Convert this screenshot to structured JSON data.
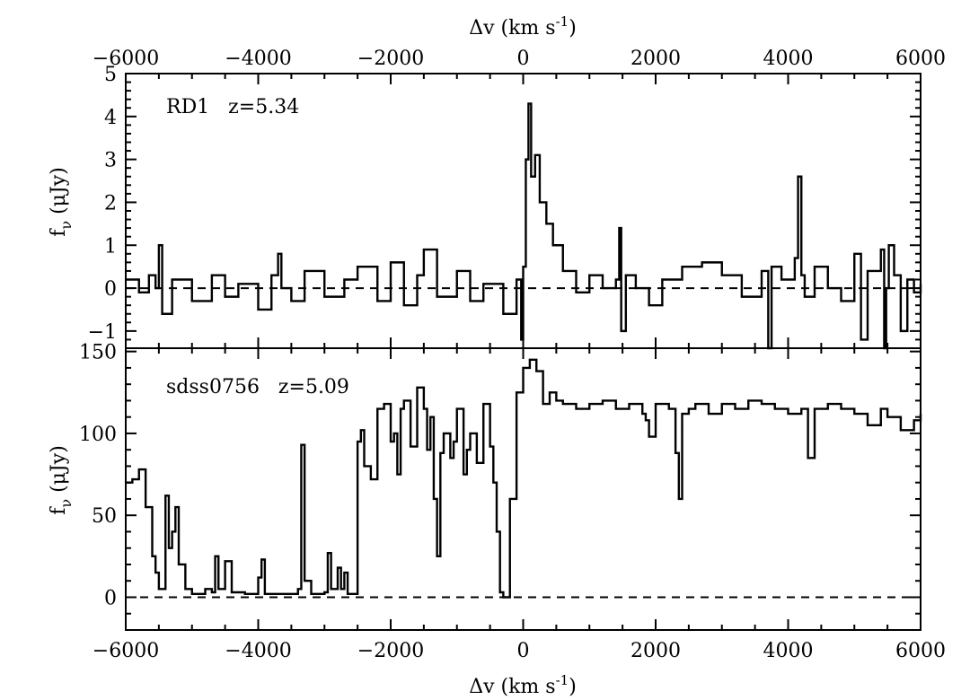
{
  "chart_data": [
    {
      "type": "line",
      "label": "RD1   z=5.34",
      "xlabel_top": "Δv (km s⁻¹)",
      "ylabel": "f_ν (μJy)",
      "xlim": [
        -6000,
        6000
      ],
      "ylim": [
        -1.4,
        5.0
      ],
      "xticks": [
        -6000,
        -4000,
        -2000,
        0,
        2000,
        4000,
        6000
      ],
      "yticks": [
        -1,
        0,
        1,
        2,
        3,
        4,
        5
      ],
      "zero_line": "dashed",
      "series": [
        {
          "x": [
            -6000,
            -5800,
            -5650,
            -5550,
            -5500,
            -5450,
            -5300,
            -5000,
            -4700,
            -4500,
            -4300,
            -4000,
            -3800,
            -3700,
            -3650,
            -3500,
            -3300,
            -3000,
            -2700,
            -2500,
            -2200,
            -2000,
            -1800,
            -1600,
            -1500,
            -1300,
            -1000,
            -800,
            -600,
            -300,
            -100,
            -30,
            0,
            40,
            80,
            120,
            180,
            250,
            350,
            450,
            600,
            800,
            1000,
            1200,
            1400,
            1450,
            1480,
            1550,
            1700,
            1900,
            2100,
            2400,
            2700,
            3000,
            3300,
            3600,
            3700,
            3750,
            3900,
            4100,
            4150,
            4200,
            4250,
            4400,
            4600,
            4800,
            5000,
            5100,
            5200,
            5400,
            5450,
            5480,
            5520,
            5600,
            5700,
            5800,
            5900,
            6000
          ],
          "y": [
            0.2,
            -0.1,
            0.3,
            0.0,
            1.0,
            -0.6,
            0.2,
            -0.3,
            0.3,
            -0.2,
            0.1,
            -0.5,
            0.3,
            0.8,
            0.0,
            -0.3,
            0.4,
            -0.2,
            0.2,
            0.5,
            -0.3,
            0.6,
            -0.4,
            0.3,
            0.9,
            -0.2,
            0.4,
            -0.3,
            0.1,
            -0.6,
            0.2,
            -1.2,
            0.5,
            3.0,
            4.3,
            2.6,
            3.1,
            2.0,
            1.5,
            1.0,
            0.4,
            -0.1,
            0.3,
            0.0,
            0.2,
            1.4,
            -1.0,
            0.3,
            0.0,
            -0.4,
            0.2,
            0.5,
            0.6,
            0.3,
            -0.2,
            0.4,
            -1.4,
            0.5,
            0.2,
            0.7,
            2.6,
            0.3,
            -0.2,
            0.5,
            0.0,
            -0.3,
            0.8,
            -1.2,
            0.4,
            0.9,
            -1.4,
            0.0,
            1.0,
            0.3,
            -1.0,
            0.2,
            -0.1,
            0.1
          ]
        }
      ]
    },
    {
      "type": "line",
      "label": "sdss0756   z=5.09",
      "xlabel": "Δv (km s⁻¹)",
      "ylabel": "f_ν (μJy)",
      "xlim": [
        -6000,
        6000
      ],
      "ylim": [
        -20,
        152
      ],
      "xticks": [
        -6000,
        -4000,
        -2000,
        0,
        2000,
        4000,
        6000
      ],
      "yticks": [
        0,
        50,
        100,
        150
      ],
      "zero_line": "dashed",
      "series": [
        {
          "x": [
            -6000,
            -5900,
            -5800,
            -5700,
            -5600,
            -5550,
            -5500,
            -5400,
            -5350,
            -5300,
            -5250,
            -5200,
            -5100,
            -5000,
            -4800,
            -4700,
            -4650,
            -4600,
            -4500,
            -4400,
            -4200,
            -4000,
            -3950,
            -3900,
            -3800,
            -3600,
            -3400,
            -3350,
            -3300,
            -3200,
            -3000,
            -2950,
            -2900,
            -2800,
            -2750,
            -2700,
            -2650,
            -2600,
            -2500,
            -2450,
            -2400,
            -2300,
            -2200,
            -2100,
            -2000,
            -1950,
            -1900,
            -1850,
            -1800,
            -1700,
            -1600,
            -1500,
            -1450,
            -1400,
            -1350,
            -1300,
            -1250,
            -1200,
            -1100,
            -1050,
            -1000,
            -900,
            -850,
            -800,
            -700,
            -600,
            -500,
            -450,
            -400,
            -350,
            -300,
            -200,
            -100,
            0,
            100,
            200,
            300,
            400,
            500,
            600,
            800,
            1000,
            1200,
            1400,
            1600,
            1800,
            1850,
            1900,
            2000,
            2200,
            2300,
            2350,
            2400,
            2500,
            2600,
            2800,
            3000,
            3200,
            3400,
            3600,
            3800,
            4000,
            4200,
            4300,
            4400,
            4600,
            4800,
            5000,
            5200,
            5400,
            5500,
            5700,
            5900,
            6000
          ],
          "y": [
            70,
            72,
            78,
            55,
            25,
            15,
            5,
            62,
            30,
            40,
            55,
            20,
            5,
            2,
            5,
            3,
            25,
            5,
            22,
            3,
            2,
            12,
            23,
            2,
            2,
            2,
            5,
            93,
            10,
            2,
            3,
            27,
            5,
            18,
            5,
            15,
            2,
            2,
            95,
            102,
            80,
            72,
            115,
            118,
            95,
            100,
            75,
            115,
            120,
            92,
            128,
            115,
            90,
            110,
            60,
            25,
            88,
            100,
            85,
            95,
            115,
            75,
            90,
            100,
            82,
            118,
            92,
            70,
            40,
            3,
            0,
            60,
            125,
            140,
            145,
            138,
            118,
            125,
            120,
            118,
            115,
            118,
            120,
            115,
            118,
            112,
            108,
            98,
            118,
            115,
            88,
            60,
            112,
            115,
            118,
            112,
            118,
            115,
            120,
            118,
            115,
            112,
            115,
            85,
            115,
            118,
            115,
            112,
            105,
            115,
            110,
            102,
            108,
            112
          ]
        }
      ]
    }
  ]
}
